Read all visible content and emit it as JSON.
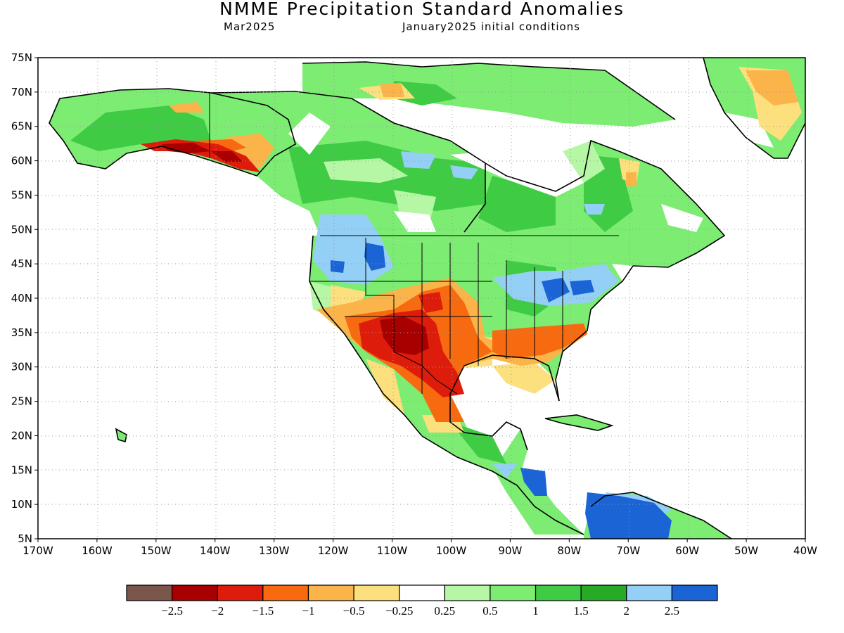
{
  "title": "NMME Precipitation Standard Anomalies",
  "subtitle_left": "Mar2025",
  "subtitle_right": "January2025 initial conditions",
  "lat_labels": [
    "75N",
    "70N",
    "65N",
    "60N",
    "55N",
    "50N",
    "45N",
    "40N",
    "35N",
    "30N",
    "25N",
    "20N",
    "15N",
    "10N",
    "5N"
  ],
  "lon_labels": [
    "170W",
    "160W",
    "150W",
    "140W",
    "130W",
    "120W",
    "110W",
    "100W",
    "90W",
    "80W",
    "70W",
    "60W",
    "50W",
    "40W"
  ],
  "colorbar": {
    "colors": [
      "#7b564a",
      "#a80000",
      "#dd1c0c",
      "#f76a10",
      "#fbb449",
      "#fde07e",
      "#ffffff",
      "#b5f7a5",
      "#7dec73",
      "#3fcc44",
      "#27ab27",
      "#94d0f5",
      "#1a64d6"
    ],
    "labels": [
      "-2.5",
      "-2",
      "-1.5",
      "-1",
      "-0.5",
      "-0.25",
      "0.25",
      "0.5",
      "1",
      "1.5",
      "2",
      "2.5"
    ]
  },
  "anomaly_regions": [
    {
      "name": "Southwest US / northern Mexico dry core",
      "value_class": "-2"
    },
    {
      "name": "Southern Plains / Texas dry",
      "value_class": "-1.5"
    },
    {
      "name": "Southeast US dry",
      "value_class": "-1"
    },
    {
      "name": "Southern Alaska coast dry",
      "value_class": "-2"
    },
    {
      "name": "Pacific Northwest wet",
      "value_class": "2"
    },
    {
      "name": "Ohio Valley / Northeast wet",
      "value_class": "2.5"
    },
    {
      "name": "Central America wet",
      "value_class": "2.5"
    },
    {
      "name": "Northern South America wet",
      "value_class": "2.5"
    },
    {
      "name": "Greenland dry",
      "value_class": "-0.5"
    },
    {
      "name": "Canada wet",
      "value_class": "1"
    }
  ]
}
